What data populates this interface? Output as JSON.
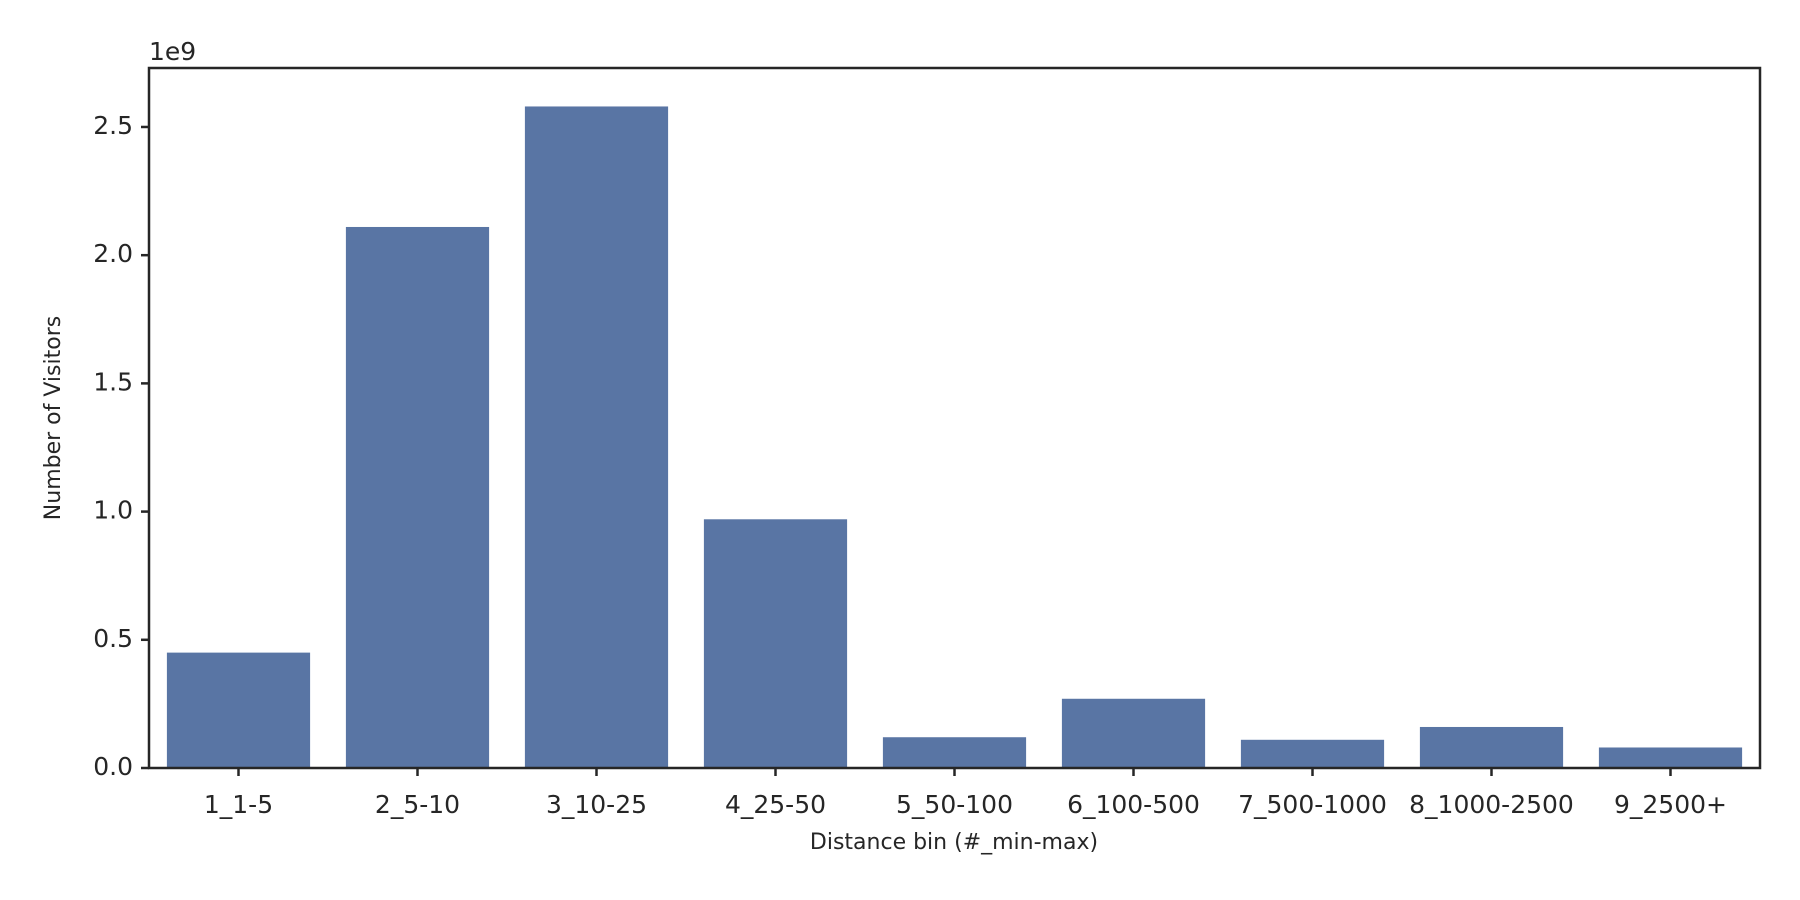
{
  "chart_data": {
    "type": "bar",
    "x_label": "Distance bin (#_min-max)",
    "y_label": "Number of Visitors",
    "y_offset": "1e9",
    "categories": [
      "1_1-5",
      "2_5-10",
      "3_10-25",
      "4_25-50",
      "5_50-100",
      "6_100-500",
      "7_500-1000",
      "8_1000-2500",
      "9_2500+"
    ],
    "values": [
      0.45,
      2.11,
      2.58,
      0.97,
      0.12,
      0.27,
      0.11,
      0.16,
      0.08
    ],
    "color": "#5975a4",
    "ylim": [
      0,
      2.73
    ],
    "yticks": [
      {
        "value": 0,
        "label": "0.0"
      },
      0.5,
      {
        "value": 1,
        "label": "1.0"
      },
      1.5,
      {
        "value": 2,
        "label": "2.0"
      },
      2.5
    ],
    "grid": false
  }
}
